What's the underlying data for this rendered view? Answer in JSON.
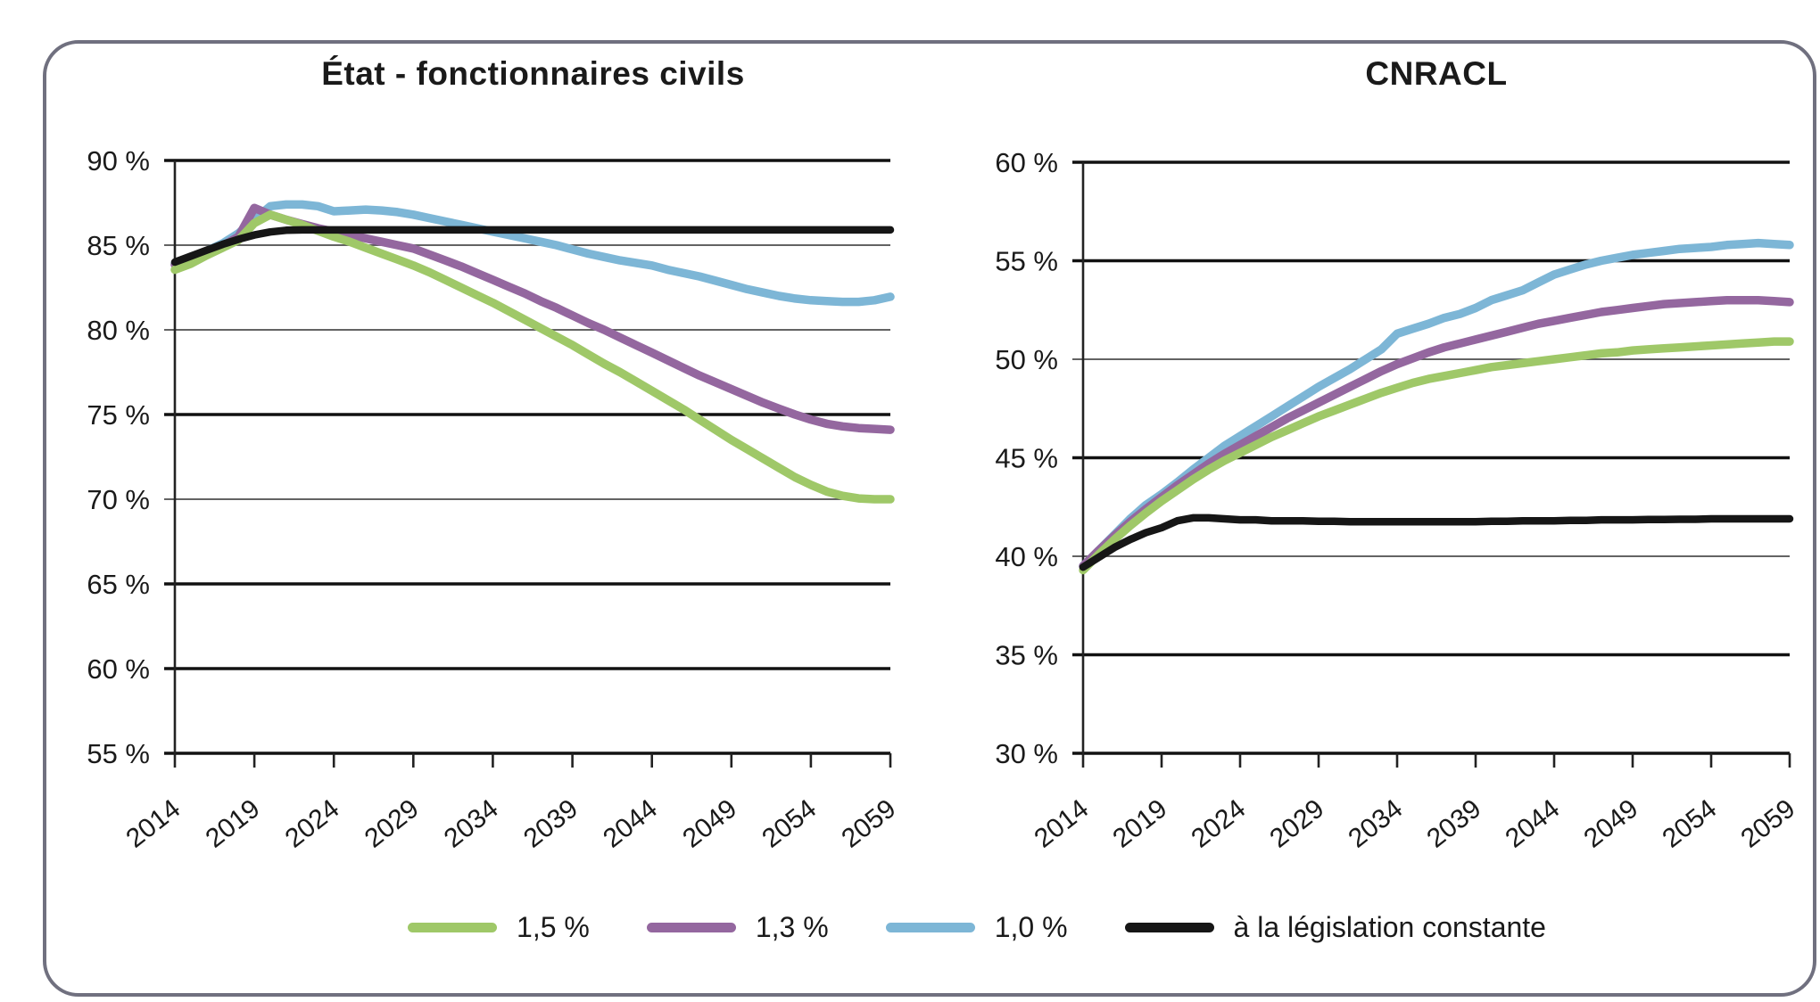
{
  "panel": {
    "border_color": "#70707f"
  },
  "legend": {
    "position": "bottom",
    "items": [
      {
        "label": "1,5 %",
        "color": "#9fc868"
      },
      {
        "label": "1,3 %",
        "color": "#94679f"
      },
      {
        "label": "1,0 %",
        "color": "#7db6d6"
      },
      {
        "label": "à la législation constante",
        "color": "#161616"
      }
    ]
  },
  "chart_data": [
    {
      "type": "line",
      "title": "État - fonctionnaires civils",
      "xlim": [
        2014,
        2059
      ],
      "ylim": [
        55,
        90
      ],
      "grid": "horizontal",
      "legend_position": "bottom",
      "y_ticks": {
        "values": [
          90,
          85,
          80,
          75,
          70,
          65,
          60,
          55
        ],
        "labels": [
          "90 %",
          "85 %",
          "80 %",
          "75 %",
          "70 %",
          "65 %",
          "60 %",
          "55 %"
        ]
      },
      "x_ticks": {
        "values": [
          2014,
          2019,
          2024,
          2029,
          2034,
          2039,
          2044,
          2049,
          2054,
          2059
        ],
        "labels": [
          "2014",
          "2019",
          "2024",
          "2029",
          "2034",
          "2039",
          "2044",
          "2049",
          "2054",
          "2059"
        ]
      },
      "x": [
        2014,
        2015,
        2016,
        2017,
        2018,
        2019,
        2020,
        2021,
        2022,
        2023,
        2024,
        2025,
        2026,
        2027,
        2028,
        2029,
        2030,
        2031,
        2032,
        2033,
        2034,
        2035,
        2036,
        2037,
        2038,
        2039,
        2040,
        2041,
        2042,
        2043,
        2044,
        2045,
        2046,
        2047,
        2048,
        2049,
        2050,
        2051,
        2052,
        2053,
        2054,
        2055,
        2056,
        2057,
        2058,
        2059
      ],
      "series": [
        {
          "name": "1,5 %",
          "color": "#9fc868",
          "values": [
            83.55,
            83.9,
            84.4,
            84.85,
            85.3,
            86.3,
            86.8,
            86.5,
            86.2,
            85.85,
            85.5,
            85.2,
            84.85,
            84.5,
            84.15,
            83.8,
            83.4,
            82.95,
            82.5,
            82.05,
            81.6,
            81.1,
            80.6,
            80.1,
            79.6,
            79.1,
            78.55,
            78.0,
            77.5,
            76.95,
            76.4,
            75.85,
            75.3,
            74.7,
            74.1,
            73.5,
            72.95,
            72.4,
            71.85,
            71.3,
            70.85,
            70.45,
            70.2,
            70.05,
            70.0,
            70.0
          ]
        },
        {
          "name": "1,3 %",
          "color": "#94679f",
          "values": [
            83.85,
            84.2,
            84.55,
            84.95,
            85.5,
            87.2,
            86.8,
            86.5,
            86.25,
            86.0,
            85.8,
            85.6,
            85.4,
            85.2,
            85.0,
            84.8,
            84.45,
            84.1,
            83.75,
            83.35,
            82.95,
            82.55,
            82.15,
            81.7,
            81.3,
            80.85,
            80.4,
            80.0,
            79.55,
            79.1,
            78.65,
            78.2,
            77.75,
            77.3,
            76.9,
            76.5,
            76.1,
            75.7,
            75.35,
            75.0,
            74.7,
            74.45,
            74.3,
            74.2,
            74.15,
            74.1
          ]
        },
        {
          "name": "1,0 %",
          "color": "#7db6d6",
          "values": [
            83.9,
            84.25,
            84.65,
            85.1,
            85.7,
            86.5,
            87.3,
            87.4,
            87.4,
            87.3,
            87.0,
            87.05,
            87.1,
            87.05,
            86.95,
            86.8,
            86.6,
            86.4,
            86.2,
            86.0,
            85.8,
            85.6,
            85.4,
            85.2,
            85.0,
            84.75,
            84.5,
            84.3,
            84.1,
            83.95,
            83.8,
            83.55,
            83.35,
            83.15,
            82.9,
            82.65,
            82.4,
            82.2,
            82.0,
            81.85,
            81.75,
            81.7,
            81.65,
            81.65,
            81.75,
            81.95
          ]
        },
        {
          "name": "à la législation constante",
          "color": "#161616",
          "values": [
            84.0,
            84.35,
            84.7,
            85.05,
            85.35,
            85.6,
            85.78,
            85.88,
            85.9,
            85.9,
            85.9,
            85.9,
            85.9,
            85.9,
            85.9,
            85.9,
            85.9,
            85.9,
            85.9,
            85.9,
            85.9,
            85.9,
            85.9,
            85.9,
            85.9,
            85.9,
            85.9,
            85.9,
            85.9,
            85.9,
            85.9,
            85.9,
            85.9,
            85.9,
            85.9,
            85.9,
            85.9,
            85.9,
            85.9,
            85.9,
            85.9,
            85.9,
            85.9,
            85.9,
            85.9,
            85.9
          ]
        }
      ]
    },
    {
      "type": "line",
      "title": "CNRACL",
      "xlim": [
        2014,
        2059
      ],
      "ylim": [
        30,
        60
      ],
      "grid": "horizontal",
      "legend_position": "bottom",
      "y_ticks": {
        "values": [
          60,
          55,
          50,
          45,
          40,
          35,
          30
        ],
        "labels": [
          "60 %",
          "55 %",
          "50 %",
          "45 %",
          "40 %",
          "35 %",
          "30 %"
        ]
      },
      "x_ticks": {
        "values": [
          2014,
          2019,
          2024,
          2029,
          2034,
          2039,
          2044,
          2049,
          2054,
          2059
        ],
        "labels": [
          "2014",
          "2019",
          "2024",
          "2029",
          "2034",
          "2039",
          "2044",
          "2049",
          "2054",
          "2059"
        ]
      },
      "x": [
        2014,
        2015,
        2016,
        2017,
        2018,
        2019,
        2020,
        2021,
        2022,
        2023,
        2024,
        2025,
        2026,
        2027,
        2028,
        2029,
        2030,
        2031,
        2032,
        2033,
        2034,
        2035,
        2036,
        2037,
        2038,
        2039,
        2040,
        2041,
        2042,
        2043,
        2044,
        2045,
        2046,
        2047,
        2048,
        2049,
        2050,
        2051,
        2052,
        2053,
        2054,
        2055,
        2056,
        2057,
        2058,
        2059
      ],
      "series": [
        {
          "name": "1,5 %",
          "color": "#9fc868",
          "values": [
            39.3,
            40.1,
            40.85,
            41.55,
            42.2,
            42.8,
            43.35,
            43.9,
            44.4,
            44.85,
            45.25,
            45.65,
            46.05,
            46.4,
            46.75,
            47.1,
            47.4,
            47.7,
            48.0,
            48.3,
            48.55,
            48.8,
            49.0,
            49.15,
            49.3,
            49.45,
            49.6,
            49.7,
            49.8,
            49.9,
            50.0,
            50.1,
            50.2,
            50.3,
            50.35,
            50.45,
            50.5,
            50.55,
            50.6,
            50.65,
            50.7,
            50.75,
            50.8,
            50.85,
            50.9,
            50.9
          ]
        },
        {
          "name": "1,3 %",
          "color": "#94679f",
          "values": [
            39.5,
            40.3,
            41.05,
            41.75,
            42.4,
            43.0,
            43.6,
            44.15,
            44.7,
            45.2,
            45.65,
            46.1,
            46.55,
            47.0,
            47.4,
            47.8,
            48.2,
            48.6,
            49.0,
            49.4,
            49.75,
            50.05,
            50.35,
            50.6,
            50.8,
            51.0,
            51.2,
            51.4,
            51.6,
            51.8,
            51.95,
            52.1,
            52.25,
            52.4,
            52.5,
            52.6,
            52.7,
            52.8,
            52.85,
            52.9,
            52.95,
            53.0,
            53.0,
            53.0,
            52.95,
            52.9
          ]
        },
        {
          "name": "1,0 %",
          "color": "#7db6d6",
          "values": [
            39.5,
            40.3,
            41.1,
            41.9,
            42.6,
            43.15,
            43.75,
            44.4,
            45.0,
            45.6,
            46.1,
            46.6,
            47.1,
            47.6,
            48.1,
            48.6,
            49.05,
            49.5,
            50.0,
            50.5,
            51.3,
            51.55,
            51.8,
            52.1,
            52.3,
            52.6,
            53.0,
            53.25,
            53.5,
            53.9,
            54.3,
            54.55,
            54.8,
            55.0,
            55.15,
            55.3,
            55.4,
            55.5,
            55.6,
            55.65,
            55.7,
            55.8,
            55.85,
            55.9,
            55.85,
            55.8
          ]
        },
        {
          "name": "à la législation constante",
          "color": "#161616",
          "values": [
            39.45,
            39.95,
            40.45,
            40.85,
            41.2,
            41.45,
            41.8,
            41.95,
            41.95,
            41.9,
            41.85,
            41.85,
            41.8,
            41.8,
            41.8,
            41.78,
            41.78,
            41.75,
            41.75,
            41.75,
            41.75,
            41.75,
            41.75,
            41.75,
            41.75,
            41.75,
            41.78,
            41.78,
            41.8,
            41.8,
            41.8,
            41.82,
            41.82,
            41.85,
            41.85,
            41.85,
            41.87,
            41.87,
            41.88,
            41.88,
            41.9,
            41.9,
            41.9,
            41.9,
            41.9,
            41.9
          ]
        }
      ]
    }
  ]
}
